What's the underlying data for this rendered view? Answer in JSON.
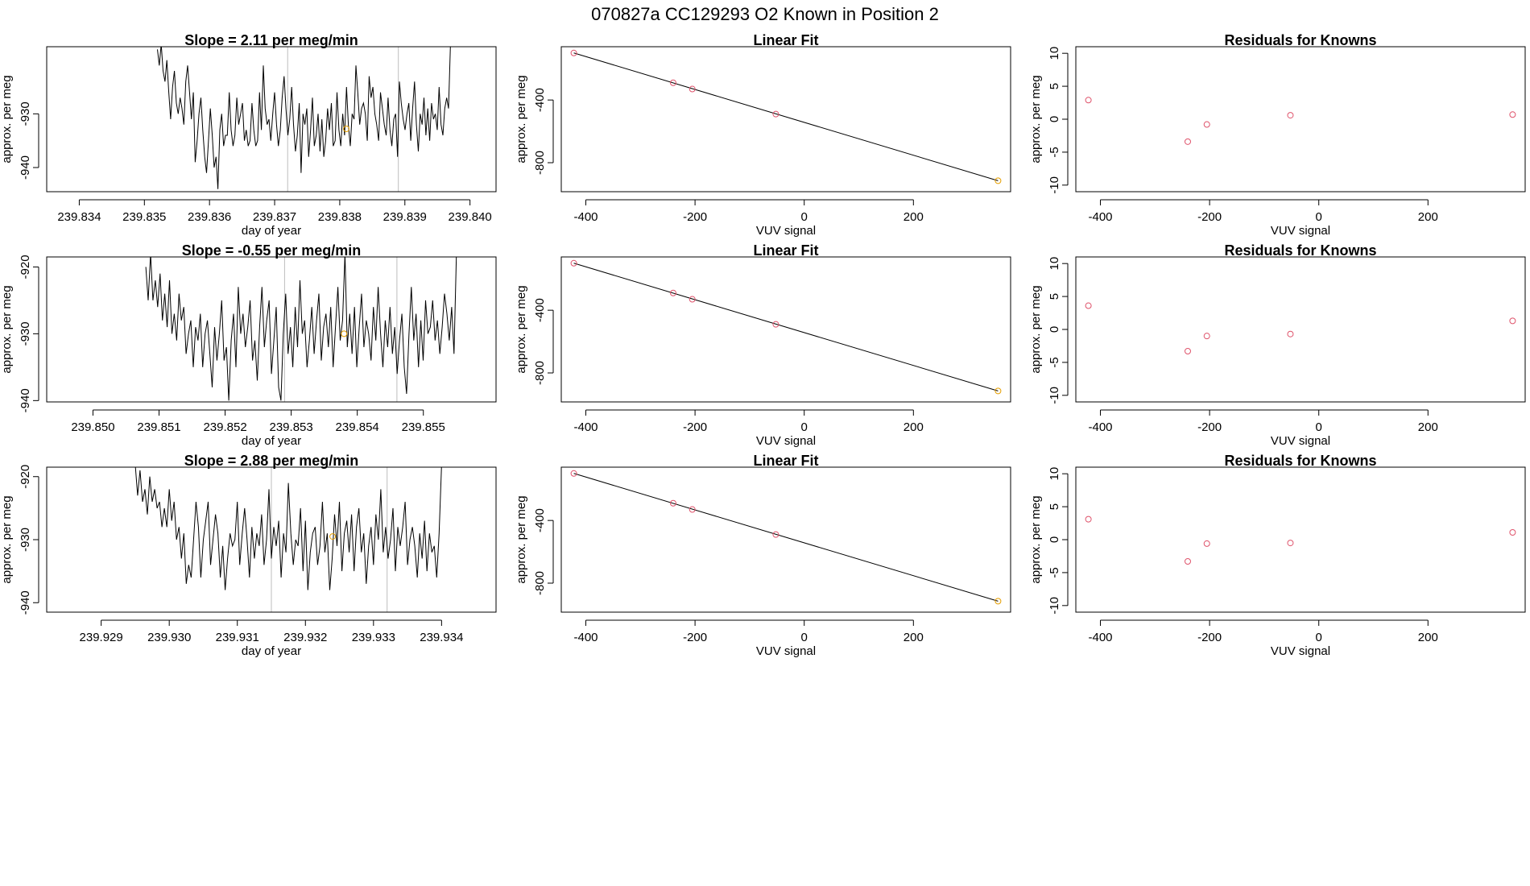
{
  "figure_title": "070827a     CC129293   O2 Known in Position  2",
  "colors": {
    "line": "#000000",
    "point_red": "#df536b",
    "point_orange": "#e69f00",
    "vline": "#bebebe"
  },
  "chart_data": [
    {
      "type": "line",
      "title": "Slope =  2.11  per meg/min",
      "xlabel": "day of year",
      "ylabel": "approx. per meg",
      "xlim": [
        239.8335,
        239.8404
      ],
      "ylim": [
        -944.5,
        -917.5
      ],
      "xticks": [
        239.834,
        239.835,
        239.836,
        239.837,
        239.838,
        239.839,
        239.84
      ],
      "xtick_labels": [
        "239.834",
        "239.835",
        "239.836",
        "239.837",
        "239.838",
        "239.839",
        "239.840"
      ],
      "yticks": [
        -930,
        -940
      ],
      "ytick_labels": [
        "-930",
        "-940"
      ],
      "vlines": [
        239.8372,
        239.8389
      ],
      "marker": {
        "x": 239.8381,
        "y": -932.8,
        "color": "orange"
      },
      "series": [
        {
          "start": 239.8352,
          "end": 239.8397,
          "y": [
            -918,
            -921,
            -917,
            -922,
            -924,
            -920,
            -926,
            -931,
            -925,
            -922,
            -928,
            -930,
            -927,
            -929,
            -932,
            -924,
            -921,
            -926,
            -931,
            -926,
            -939,
            -935,
            -930,
            -927,
            -933,
            -938,
            -941,
            -935,
            -929,
            -934,
            -940,
            -938,
            -944,
            -933,
            -930,
            -936,
            -934,
            -934,
            -926,
            -933,
            -936,
            -934,
            -927,
            -932,
            -930,
            -928,
            -935,
            -933,
            -936,
            -935,
            -928,
            -933,
            -936,
            -935,
            -926,
            -933,
            -921,
            -929,
            -932,
            -931,
            -935,
            -930,
            -926,
            -932,
            -936,
            -933,
            -927,
            -923,
            -929,
            -934,
            -931,
            -925,
            -932,
            -937,
            -934,
            -928,
            -941,
            -930,
            -932,
            -929,
            -938,
            -933,
            -927,
            -936,
            -934,
            -930,
            -937,
            -931,
            -938,
            -935,
            -929,
            -933,
            -928,
            -936,
            -935,
            -926,
            -933,
            -936,
            -930,
            -934,
            -925,
            -932,
            -936,
            -930,
            -931,
            -921,
            -926,
            -932,
            -929,
            -928,
            -930,
            -935,
            -923,
            -927,
            -925,
            -930,
            -932,
            -935,
            -926,
            -929,
            -932,
            -934,
            -927,
            -933,
            -936,
            -931,
            -930,
            -938,
            -924,
            -928,
            -931,
            -933,
            -930,
            -928,
            -935,
            -929,
            -924,
            -932,
            -937,
            -930,
            -932,
            -927,
            -934,
            -929,
            -935,
            -928,
            -931,
            -930,
            -933,
            -925,
            -932,
            -934,
            -929,
            -927,
            -929,
            -917
          ]
        }
      ]
    },
    {
      "type": "scatter",
      "title": "Linear Fit",
      "xlabel": "VUV signal",
      "ylabel": "approx. per meg",
      "xlim": [
        -445,
        378
      ],
      "ylim": [
        -985,
        -60
      ],
      "xticks": [
        -400,
        -200,
        0,
        200
      ],
      "yticks": [
        -400,
        -800
      ],
      "fit_line": {
        "x": [
          -422,
          355
        ],
        "y": [
          -100,
          -915
        ]
      },
      "points": [
        {
          "x": -422,
          "y": -100,
          "color": "red"
        },
        {
          "x": -240,
          "y": -290,
          "color": "red"
        },
        {
          "x": -205,
          "y": -330,
          "color": "red"
        },
        {
          "x": -52,
          "y": -490,
          "color": "red"
        },
        {
          "x": 355,
          "y": -915,
          "color": "orange"
        }
      ]
    },
    {
      "type": "scatter",
      "title": "Residuals for Knowns",
      "xlabel": "VUV signal",
      "ylabel": "approx. per meg",
      "xlim": [
        -445,
        378
      ],
      "ylim": [
        -11,
        11
      ],
      "xticks": [
        -400,
        -200,
        0,
        200
      ],
      "yticks": [
        10,
        5,
        0,
        -5,
        -10
      ],
      "points": [
        {
          "x": -422,
          "y": 2.9
        },
        {
          "x": -240,
          "y": -3.4
        },
        {
          "x": -205,
          "y": -0.8
        },
        {
          "x": -52,
          "y": 0.6
        },
        {
          "x": 355,
          "y": 0.7
        }
      ]
    },
    {
      "type": "line",
      "title": "Slope =  -0.55  per meg/min",
      "xlabel": "day of year",
      "ylabel": "approx. per meg",
      "xlim": [
        239.8493,
        239.8561
      ],
      "ylim": [
        -940.2,
        -918.5
      ],
      "xticks": [
        239.85,
        239.851,
        239.852,
        239.853,
        239.854,
        239.855
      ],
      "xtick_labels": [
        "239.850",
        "239.851",
        "239.852",
        "239.853",
        "239.854",
        "239.855"
      ],
      "yticks": [
        -920,
        -930,
        -940
      ],
      "ytick_labels": [
        "-920",
        "-930",
        "-940"
      ],
      "vlines": [
        239.8529,
        239.8546
      ],
      "marker": {
        "x": 239.8538,
        "y": -930.0,
        "color": "orange"
      },
      "series": [
        {
          "start": 239.8508,
          "end": 239.8555,
          "y": [
            -920,
            -925,
            -918,
            -925,
            -922,
            -926,
            -921,
            -928,
            -924,
            -929,
            -922,
            -930,
            -927,
            -931,
            -924,
            -928,
            -926,
            -933,
            -930,
            -928,
            -935,
            -929,
            -931,
            -927,
            -935,
            -930,
            -928,
            -933,
            -938,
            -929,
            -934,
            -930,
            -925,
            -934,
            -932,
            -940,
            -931,
            -927,
            -935,
            -923,
            -930,
            -927,
            -932,
            -929,
            -925,
            -934,
            -931,
            -937,
            -929,
            -923,
            -932,
            -928,
            -925,
            -936,
            -931,
            -926,
            -938,
            -940,
            -930,
            -924,
            -933,
            -929,
            -935,
            -926,
            -932,
            -922,
            -930,
            -928,
            -935,
            -931,
            -926,
            -933,
            -928,
            -924,
            -934,
            -929,
            -927,
            -932,
            -926,
            -935,
            -929,
            -923,
            -931,
            -928,
            -918,
            -932,
            -927,
            -933,
            -926,
            -935,
            -929,
            -924,
            -932,
            -928,
            -930,
            -934,
            -926,
            -931,
            -923,
            -930,
            -935,
            -928,
            -932,
            -926,
            -933,
            -929,
            -936,
            -931,
            -927,
            -935,
            -939,
            -930,
            -923,
            -931,
            -927,
            -935,
            -928,
            -934,
            -925,
            -930,
            -929,
            -925,
            -931,
            -928,
            -933,
            -929,
            -924,
            -927,
            -931,
            -926,
            -933,
            -918
          ]
        }
      ]
    },
    {
      "type": "scatter",
      "title": "Linear Fit",
      "xlabel": "VUV signal",
      "ylabel": "approx. per meg",
      "xlim": [
        -445,
        378
      ],
      "ylim": [
        -985,
        -60
      ],
      "xticks": [
        -400,
        -200,
        0,
        200
      ],
      "yticks": [
        -400,
        -800
      ],
      "fit_line": {
        "x": [
          -422,
          355
        ],
        "y": [
          -100,
          -915
        ]
      },
      "points": [
        {
          "x": -422,
          "y": -100,
          "color": "red"
        },
        {
          "x": -240,
          "y": -290,
          "color": "red"
        },
        {
          "x": -205,
          "y": -330,
          "color": "red"
        },
        {
          "x": -52,
          "y": -490,
          "color": "red"
        },
        {
          "x": 355,
          "y": -915,
          "color": "orange"
        }
      ]
    },
    {
      "type": "scatter",
      "title": "Residuals for Knowns",
      "xlabel": "VUV signal",
      "ylabel": "approx. per meg",
      "xlim": [
        -445,
        378
      ],
      "ylim": [
        -11,
        11
      ],
      "xticks": [
        -400,
        -200,
        0,
        200
      ],
      "yticks": [
        10,
        5,
        0,
        -5,
        -10
      ],
      "points": [
        {
          "x": -422,
          "y": 3.6
        },
        {
          "x": -240,
          "y": -3.3
        },
        {
          "x": -205,
          "y": -1.0
        },
        {
          "x": -52,
          "y": -0.7
        },
        {
          "x": 355,
          "y": 1.3
        }
      ]
    },
    {
      "type": "line",
      "title": "Slope =  2.88  per meg/min",
      "xlabel": "day of year",
      "ylabel": "approx. per meg",
      "xlim": [
        239.9282,
        239.9348
      ],
      "ylim": [
        -941.5,
        -918.5
      ],
      "xticks": [
        239.929,
        239.93,
        239.931,
        239.932,
        239.933,
        239.934
      ],
      "xtick_labels": [
        "239.929",
        "239.930",
        "239.931",
        "239.932",
        "239.933",
        "239.934"
      ],
      "yticks": [
        -920,
        -930,
        -940
      ],
      "ytick_labels": [
        "-920",
        "-930",
        "-940"
      ],
      "vlines": [
        239.9315,
        239.9332
      ],
      "marker": {
        "x": 239.9324,
        "y": -929.5,
        "color": "orange"
      },
      "series": [
        {
          "start": 239.9295,
          "end": 239.934,
          "y": [
            -918,
            -923,
            -919,
            -924,
            -922,
            -926,
            -920,
            -924,
            -922,
            -925,
            -924,
            -928,
            -925,
            -928,
            -922,
            -927,
            -924,
            -930,
            -928,
            -933,
            -929,
            -937,
            -934,
            -936,
            -930,
            -924,
            -928,
            -936,
            -930,
            -927,
            -924,
            -934,
            -930,
            -926,
            -929,
            -936,
            -931,
            -938,
            -933,
            -929,
            -931,
            -930,
            -924,
            -934,
            -929,
            -925,
            -930,
            -936,
            -928,
            -933,
            -929,
            -931,
            -926,
            -934,
            -930,
            -922,
            -933,
            -928,
            -931,
            -927,
            -936,
            -929,
            -932,
            -921,
            -929,
            -934,
            -930,
            -931,
            -925,
            -935,
            -927,
            -938,
            -932,
            -929,
            -928,
            -934,
            -931,
            -924,
            -932,
            -929,
            -938,
            -933,
            -926,
            -931,
            -924,
            -935,
            -929,
            -927,
            -932,
            -926,
            -935,
            -928,
            -925,
            -932,
            -929,
            -937,
            -931,
            -928,
            -934,
            -926,
            -930,
            -922,
            -932,
            -928,
            -933,
            -930,
            -925,
            -935,
            -928,
            -931,
            -928,
            -924,
            -934,
            -930,
            -928,
            -931,
            -936,
            -929,
            -933,
            -927,
            -935,
            -929,
            -932,
            -931,
            -936,
            -929,
            -918
          ]
        }
      ]
    },
    {
      "type": "scatter",
      "title": "Linear Fit",
      "xlabel": "VUV signal",
      "ylabel": "approx. per meg",
      "xlim": [
        -445,
        378
      ],
      "ylim": [
        -985,
        -60
      ],
      "xticks": [
        -400,
        -200,
        0,
        200
      ],
      "yticks": [
        -400,
        -800
      ],
      "fit_line": {
        "x": [
          -422,
          355
        ],
        "y": [
          -100,
          -915
        ]
      },
      "points": [
        {
          "x": -422,
          "y": -100,
          "color": "red"
        },
        {
          "x": -240,
          "y": -290,
          "color": "red"
        },
        {
          "x": -205,
          "y": -330,
          "color": "red"
        },
        {
          "x": -52,
          "y": -490,
          "color": "red"
        },
        {
          "x": 355,
          "y": -915,
          "color": "orange"
        }
      ]
    },
    {
      "type": "scatter",
      "title": "Residuals for Knowns",
      "xlabel": "VUV signal",
      "ylabel": "approx. per meg",
      "xlim": [
        -445,
        378
      ],
      "ylim": [
        -11,
        11
      ],
      "xticks": [
        -400,
        -200,
        0,
        200
      ],
      "yticks": [
        10,
        5,
        0,
        -5,
        -10
      ],
      "points": [
        {
          "x": -422,
          "y": 3.1
        },
        {
          "x": -240,
          "y": -3.3
        },
        {
          "x": -205,
          "y": -0.6
        },
        {
          "x": -52,
          "y": -0.5
        },
        {
          "x": 355,
          "y": 1.1
        }
      ]
    }
  ]
}
